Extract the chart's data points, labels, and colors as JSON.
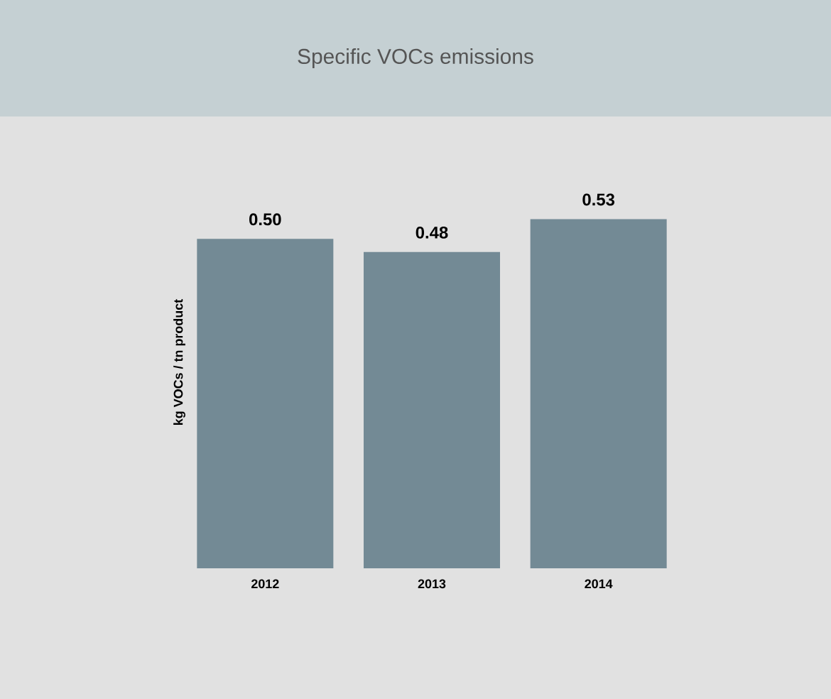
{
  "chart_data": {
    "type": "bar",
    "title": "Specific VOCs emissions",
    "ylabel": "kg VOCs / tn product",
    "categories": [
      "2012",
      "2013",
      "2014"
    ],
    "values": [
      0.5,
      0.48,
      0.53
    ],
    "value_labels": [
      "0.50",
      "0.48",
      "0.53"
    ],
    "color": "#738a95"
  }
}
